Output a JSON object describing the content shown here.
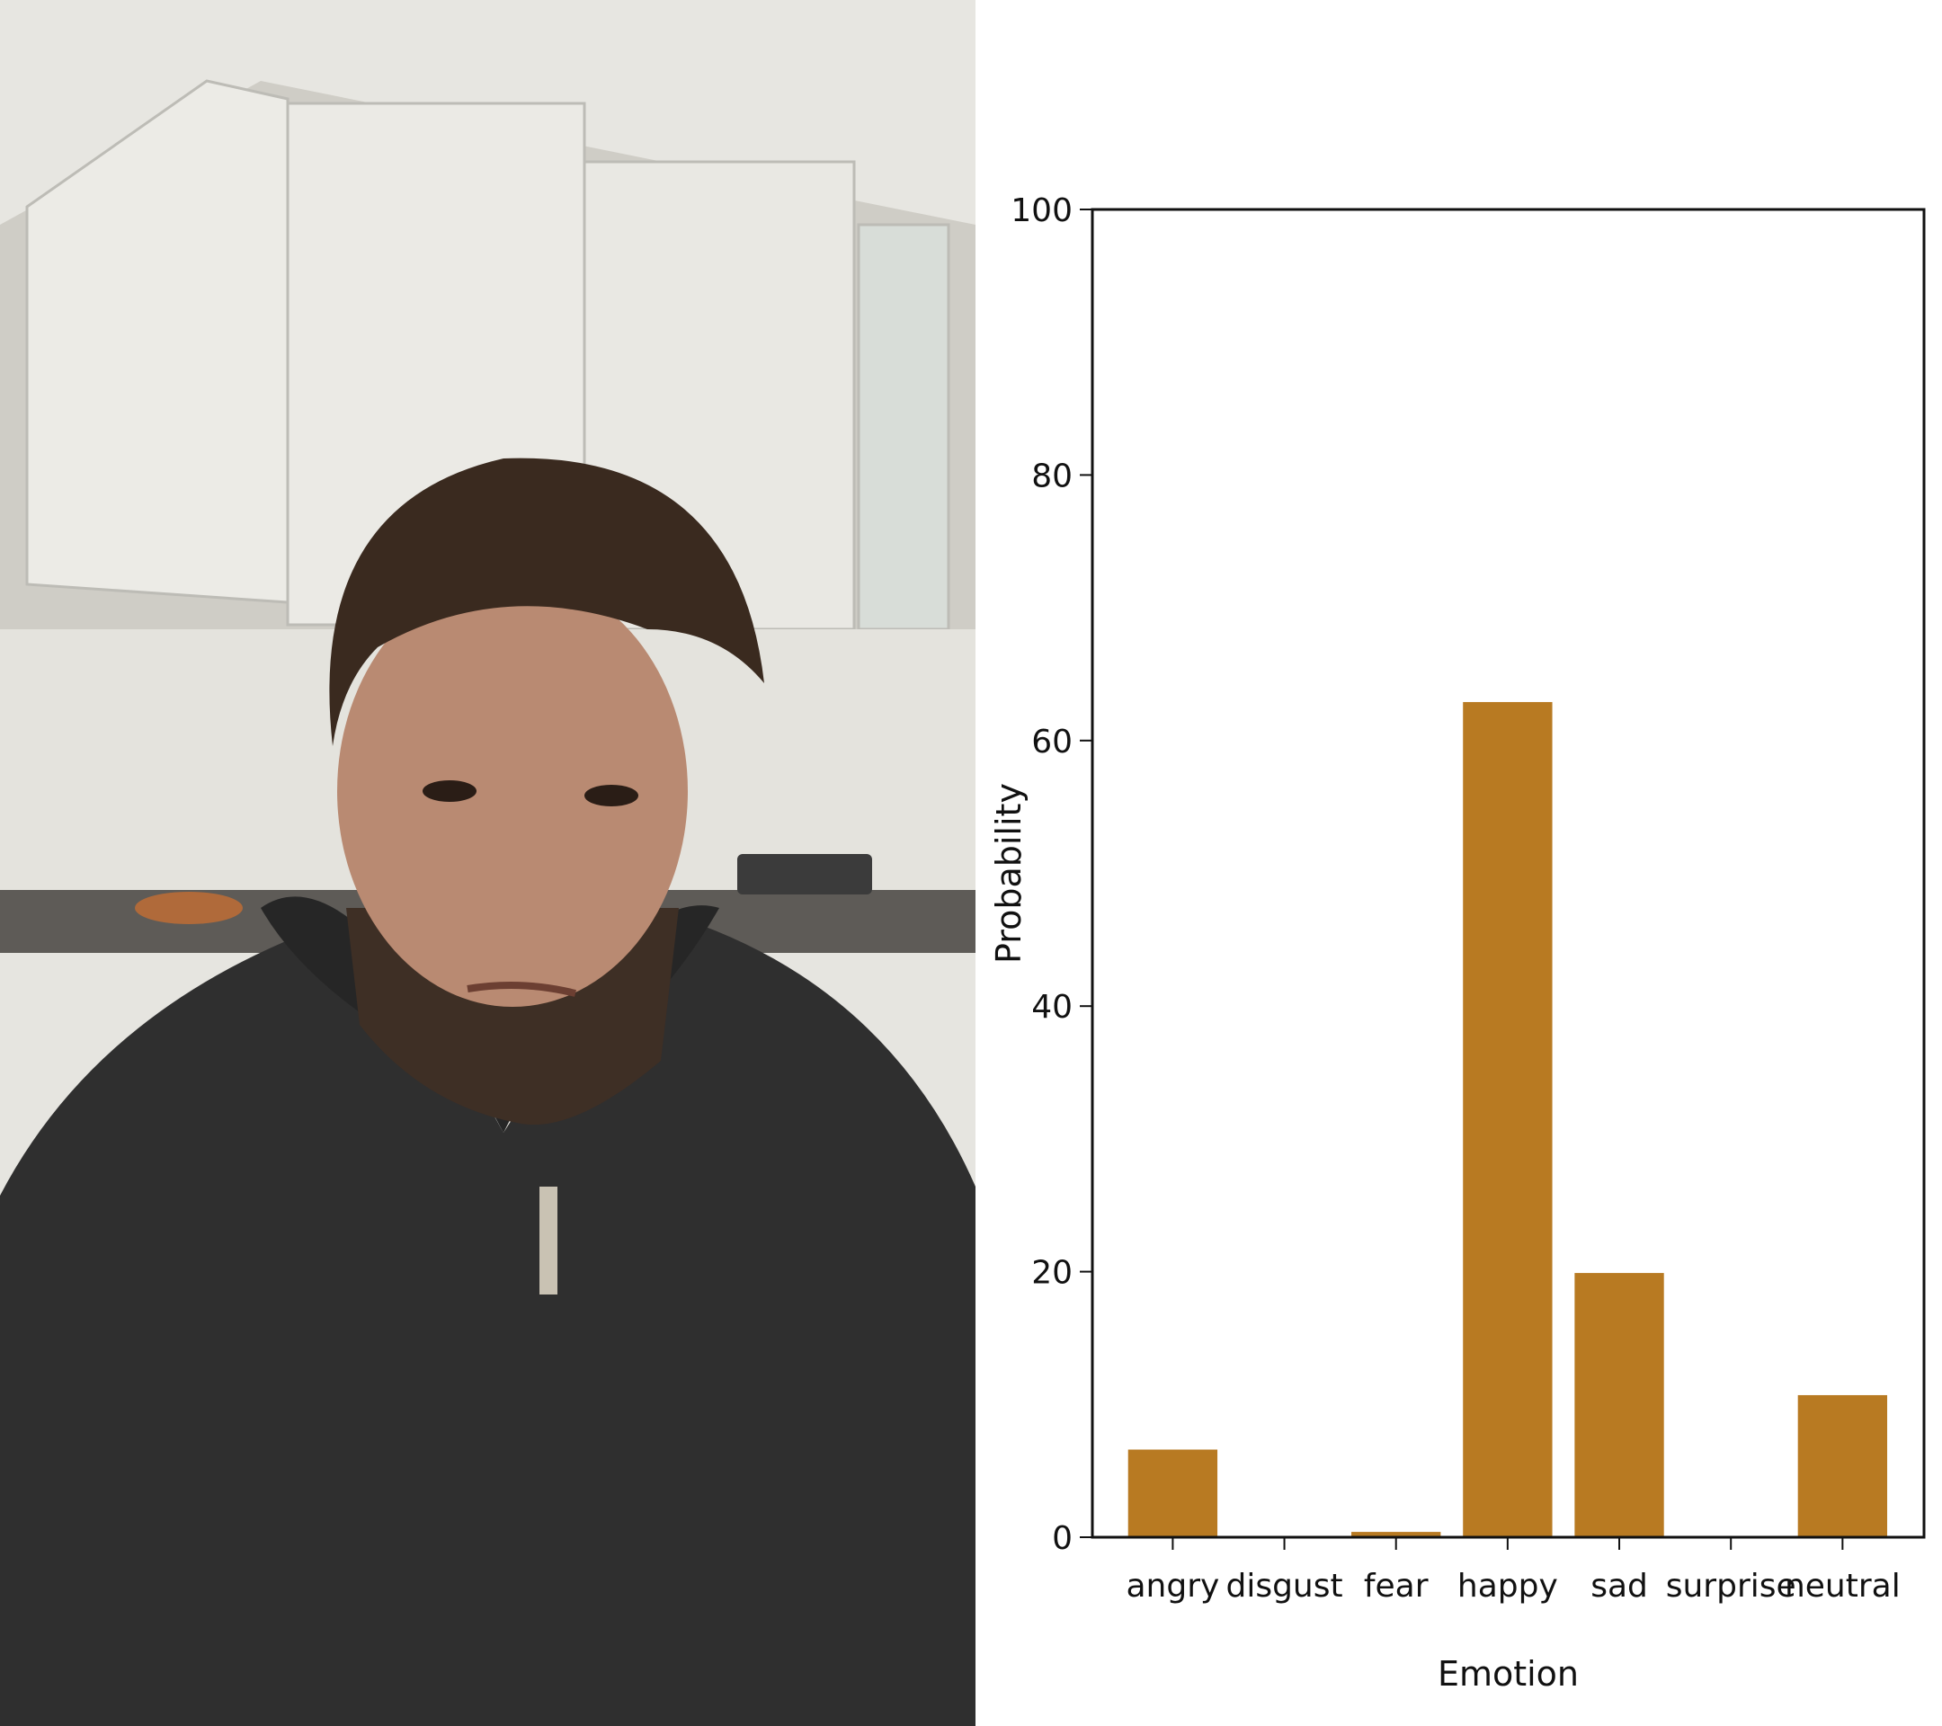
{
  "photo": {
    "subject": "man in dark knitted hoodie seated in a kitchen",
    "colors": {
      "wall": "#d9d8d3",
      "cabinet": "#ecece8",
      "hoodie": "#2f2f2f",
      "skin": "#b98a72",
      "hair": "#3a2a1f"
    }
  },
  "chart_data": {
    "type": "bar",
    "categories": [
      "angry",
      "disgust",
      "fear",
      "happy",
      "sad",
      "surprise",
      "neutral"
    ],
    "values": [
      6.6,
      0.0,
      0.4,
      62.9,
      19.9,
      0.0,
      10.7
    ],
    "xlabel": "Emotion",
    "ylabel": "Probability",
    "ylim": [
      0,
      100
    ],
    "yticks": [
      "0",
      "20",
      "40",
      "60",
      "80",
      "100"
    ],
    "grid": false,
    "bar_color": "#b87a22"
  }
}
